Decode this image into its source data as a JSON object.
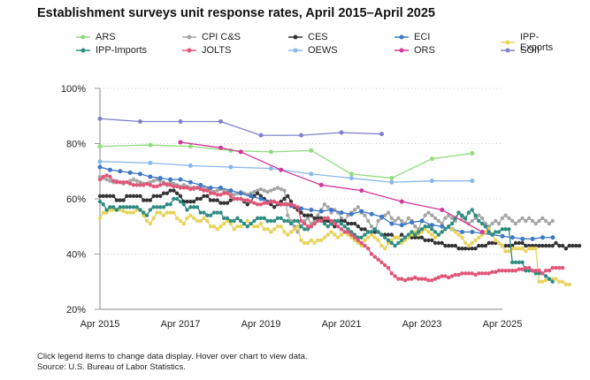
{
  "chart_data": {
    "type": "line",
    "title": "Establishment surveys unit response rates, April 2015–April 2025",
    "xlabel": "",
    "ylabel": "",
    "ylim": [
      20,
      100
    ],
    "xlim": [
      2015.25,
      2025.25
    ],
    "yticks": [
      20,
      40,
      60,
      80,
      100
    ],
    "ytick_labels": [
      "20%",
      "40%",
      "60%",
      "80%",
      "100%"
    ],
    "xticks": [
      2015.25,
      2017.25,
      2019.25,
      2021.25,
      2023.25,
      2025.25
    ],
    "xtick_labels": [
      "Apr 2015",
      "Apr 2017",
      "Apr 2019",
      "Apr 2021",
      "Apr 2023",
      "Apr 2025"
    ],
    "grid": "horizontal dotted",
    "legend_position": "top",
    "series": [
      {
        "name": "ARS",
        "color": "#8fdc7f",
        "x": [
          2015.25,
          2016.5,
          2017.5,
          2018.5,
          2019.5,
          2020.5,
          2021.5,
          2022.5,
          2023.5,
          2024.5
        ],
        "values": [
          79,
          79.5,
          79,
          77.5,
          77,
          77.5,
          69,
          67.5,
          74.5,
          76.5
        ]
      },
      {
        "name": "CPI C&S",
        "color": "#a6a6a6",
        "step": 0.0833,
        "start": 2015.25,
        "values": [
          68,
          67.5,
          67,
          66.5,
          66,
          66.5,
          66,
          65.5,
          66,
          66.5,
          67,
          66.5,
          66,
          65.5,
          65.5,
          66,
          66.5,
          67,
          66.5,
          66,
          65.5,
          66,
          65.5,
          65,
          64.5,
          65,
          64.5,
          64,
          63.5,
          64,
          64.5,
          64,
          63.5,
          63,
          62.5,
          63,
          63.5,
          63,
          62.5,
          62,
          61.5,
          62,
          62.5,
          62,
          61.5,
          62,
          62.5,
          63,
          63.5,
          63,
          62.5,
          63,
          63.5,
          64,
          63.5,
          63,
          54,
          52,
          50,
          48,
          50,
          52,
          53,
          51,
          52,
          54,
          56,
          58,
          57,
          55,
          56,
          55,
          53,
          52,
          54,
          55,
          56,
          57,
          55,
          54,
          52,
          50,
          48,
          52,
          53,
          54,
          55,
          53,
          52,
          53,
          52,
          51,
          53,
          52,
          50,
          49,
          52,
          54,
          55,
          54,
          53,
          52,
          51,
          53,
          54,
          53,
          52,
          55,
          53,
          52,
          51,
          52,
          53,
          54,
          53,
          51,
          50,
          51,
          52,
          51,
          53,
          54,
          53,
          52,
          51,
          52,
          53,
          52,
          53,
          52,
          51,
          52,
          53,
          52,
          51,
          52
        ]
      },
      {
        "name": "CES",
        "color": "#333333",
        "step": 0.0833,
        "start": 2015.25,
        "values": [
          61,
          61,
          61,
          61,
          61,
          59.5,
          59.5,
          59.5,
          61,
          61,
          61,
          61,
          61,
          59.5,
          59.5,
          59.5,
          61,
          61,
          61,
          62,
          62,
          63,
          63,
          62,
          61,
          59,
          59,
          59,
          59,
          60,
          60,
          61,
          61,
          59.5,
          59.5,
          59.5,
          58.5,
          58.5,
          58.5,
          59.5,
          60,
          60,
          60,
          59,
          58,
          59,
          61,
          62,
          61,
          60,
          59,
          58,
          57,
          58,
          59,
          60,
          61,
          59,
          57,
          56,
          55,
          54,
          54,
          54,
          53,
          53,
          53,
          52,
          52,
          51,
          50,
          52,
          52,
          52,
          51,
          51,
          51,
          50,
          49,
          49,
          48,
          48,
          48,
          48,
          47,
          47,
          47,
          47,
          46,
          46,
          47,
          46,
          46,
          46,
          46,
          46,
          46,
          45,
          45,
          45,
          44,
          44,
          44,
          43,
          43,
          43,
          43,
          42,
          42,
          42,
          42,
          42,
          42,
          43,
          43,
          43,
          44,
          44,
          44,
          44,
          43,
          43,
          43,
          43,
          44,
          44,
          44,
          43,
          43,
          43,
          43,
          43,
          43,
          43,
          43,
          43,
          44,
          43,
          43,
          42,
          43,
          43,
          43,
          43
        ]
      },
      {
        "name": "ECI",
        "color": "#3f78c6",
        "step": 0.25,
        "start": 2015.25,
        "values": [
          71.5,
          70.5,
          70,
          69.5,
          69,
          68,
          67.5,
          67,
          67,
          66,
          65,
          64,
          64,
          63,
          62,
          61,
          60,
          59,
          58,
          57.5,
          56.5,
          56,
          55.5,
          56,
          55,
          54.5,
          55.5,
          54.5,
          53.5,
          51,
          50.5,
          51.5,
          52,
          50.5,
          50,
          49,
          48,
          48,
          47.5,
          47,
          46.5,
          46,
          45.5,
          45.5,
          46,
          46
        ]
      },
      {
        "name": "IPP-Exports",
        "color": "#e8d35c",
        "step": 0.0833,
        "start": 2015.25,
        "values": [
          53,
          55,
          55,
          56,
          56,
          56,
          56,
          55.5,
          55,
          55,
          55,
          56,
          56,
          54,
          52,
          51,
          53,
          55,
          55,
          54,
          55,
          55,
          55,
          53,
          52,
          51,
          53,
          54,
          53,
          52,
          52,
          53,
          52,
          50,
          50,
          49,
          50,
          51,
          52,
          51,
          49,
          50,
          50,
          51,
          52,
          51,
          50,
          50,
          51,
          49,
          49,
          48,
          49,
          50,
          50,
          48,
          47,
          48,
          49,
          50,
          45,
          44,
          44,
          45,
          44,
          45,
          45,
          46,
          47,
          48,
          47,
          46,
          47,
          48,
          47,
          46,
          45,
          44,
          43,
          45,
          46,
          47,
          46,
          45,
          43,
          42,
          44,
          45,
          46,
          46,
          44,
          45,
          46,
          47,
          48,
          47,
          48,
          49,
          48,
          47,
          46,
          47,
          48,
          49,
          50,
          49,
          48,
          47,
          46,
          44,
          43,
          44,
          45,
          46,
          47,
          48,
          49,
          47,
          45,
          44,
          43,
          41,
          41,
          42,
          42,
          42,
          42,
          41,
          42,
          42,
          42,
          30,
          30,
          30.5,
          31,
          31,
          31,
          30,
          30,
          29,
          29
        ]
      },
      {
        "name": "IPP-Imports",
        "color": "#2e8c80",
        "step": 0.0833,
        "start": 2015.25,
        "values": [
          59,
          58,
          56,
          57,
          57,
          56,
          57,
          57,
          57,
          57,
          57,
          57,
          56,
          55,
          54,
          56,
          57,
          57,
          57,
          57,
          58,
          58,
          60,
          60,
          59,
          58,
          56,
          57,
          57,
          57,
          55,
          55,
          54,
          54,
          55,
          55,
          55,
          53,
          53,
          52,
          52,
          53,
          52,
          51,
          50,
          51,
          52,
          53,
          53,
          53,
          52,
          52,
          52,
          53,
          53,
          52,
          52,
          51,
          52,
          52,
          50,
          49,
          49,
          50,
          51,
          52,
          52,
          51,
          50,
          51,
          52,
          52,
          51,
          50,
          49,
          48,
          47,
          46,
          46,
          47,
          48,
          48,
          49,
          48,
          47,
          46,
          45,
          44,
          43,
          44,
          45,
          46,
          47,
          48,
          47,
          48,
          49,
          50,
          50,
          49,
          48,
          47,
          48,
          49,
          50,
          51,
          53,
          55,
          54,
          53,
          55,
          56,
          54,
          52,
          51,
          50,
          48,
          47,
          48,
          48,
          49,
          49,
          49,
          37,
          37,
          37,
          37,
          34,
          34,
          34,
          33,
          33,
          33,
          32,
          31,
          30
        ]
      },
      {
        "name": "JOLTS",
        "color": "#e05679",
        "step": 0.0833,
        "start": 2015.25,
        "values": [
          67,
          68,
          68.5,
          68,
          66.5,
          66,
          66,
          66,
          66,
          65.5,
          65,
          65,
          65,
          65,
          65.5,
          65,
          64.5,
          64.5,
          65,
          65.5,
          65,
          65,
          64.5,
          64.5,
          64,
          64,
          64,
          63.5,
          64,
          64,
          63.5,
          63,
          63,
          62,
          62,
          61.5,
          61.5,
          62,
          62,
          61,
          60,
          60,
          60,
          59.5,
          59.5,
          59,
          58.5,
          58,
          58,
          58.5,
          58.5,
          59,
          59,
          58.5,
          58,
          58,
          58,
          58,
          57.5,
          57,
          52,
          51,
          50,
          50,
          51,
          52,
          52,
          53,
          53,
          52,
          51,
          50,
          49,
          48,
          48,
          47,
          46,
          45,
          44,
          43,
          42,
          40,
          39,
          38,
          37,
          36,
          35,
          33,
          32,
          31,
          31,
          30.5,
          31,
          31,
          31.5,
          31,
          31,
          31,
          30.5,
          30.5,
          31,
          31.5,
          32,
          32,
          31.5,
          32,
          32.5,
          32.5,
          33,
          33,
          33,
          33,
          32.5,
          33,
          33,
          33,
          33,
          33.5,
          33.5,
          34,
          34,
          34,
          34,
          34,
          34,
          34.5,
          34.5,
          35,
          35,
          34,
          34,
          34,
          33,
          34,
          34,
          35,
          35,
          35,
          35
        ]
      },
      {
        "name": "OEWS",
        "color": "#8ab6e8",
        "x": [
          2015.25,
          2016.5,
          2017.5,
          2018.5,
          2019.5,
          2020.5,
          2021.5,
          2022.5,
          2023.5,
          2024.5
        ],
        "values": [
          73.5,
          73,
          72,
          71.5,
          71,
          69,
          67.5,
          66,
          66.5,
          66.5
        ]
      },
      {
        "name": "ORS",
        "color": "#d6359a",
        "x": [
          2017.25,
          2018.25,
          2018.75,
          2019.75,
          2020.75,
          2021.75,
          2022.75,
          2023.75,
          2024.75
        ],
        "values": [
          80.5,
          78.5,
          77,
          70.5,
          65,
          63,
          59,
          56,
          48
        ]
      },
      {
        "name": "SOII",
        "color": "#8181cc",
        "x": [
          2015.25,
          2016.25,
          2017.25,
          2018.25,
          2019.25,
          2020.25,
          2021.25,
          2022.25
        ],
        "values": [
          89,
          88,
          88,
          88,
          83,
          83,
          84,
          83.5
        ]
      }
    ]
  },
  "footnote": {
    "line1": "Click legend items to change data display. Hover over chart to view data.",
    "line2": "Source: U.S. Bureau of Labor Statistics."
  }
}
